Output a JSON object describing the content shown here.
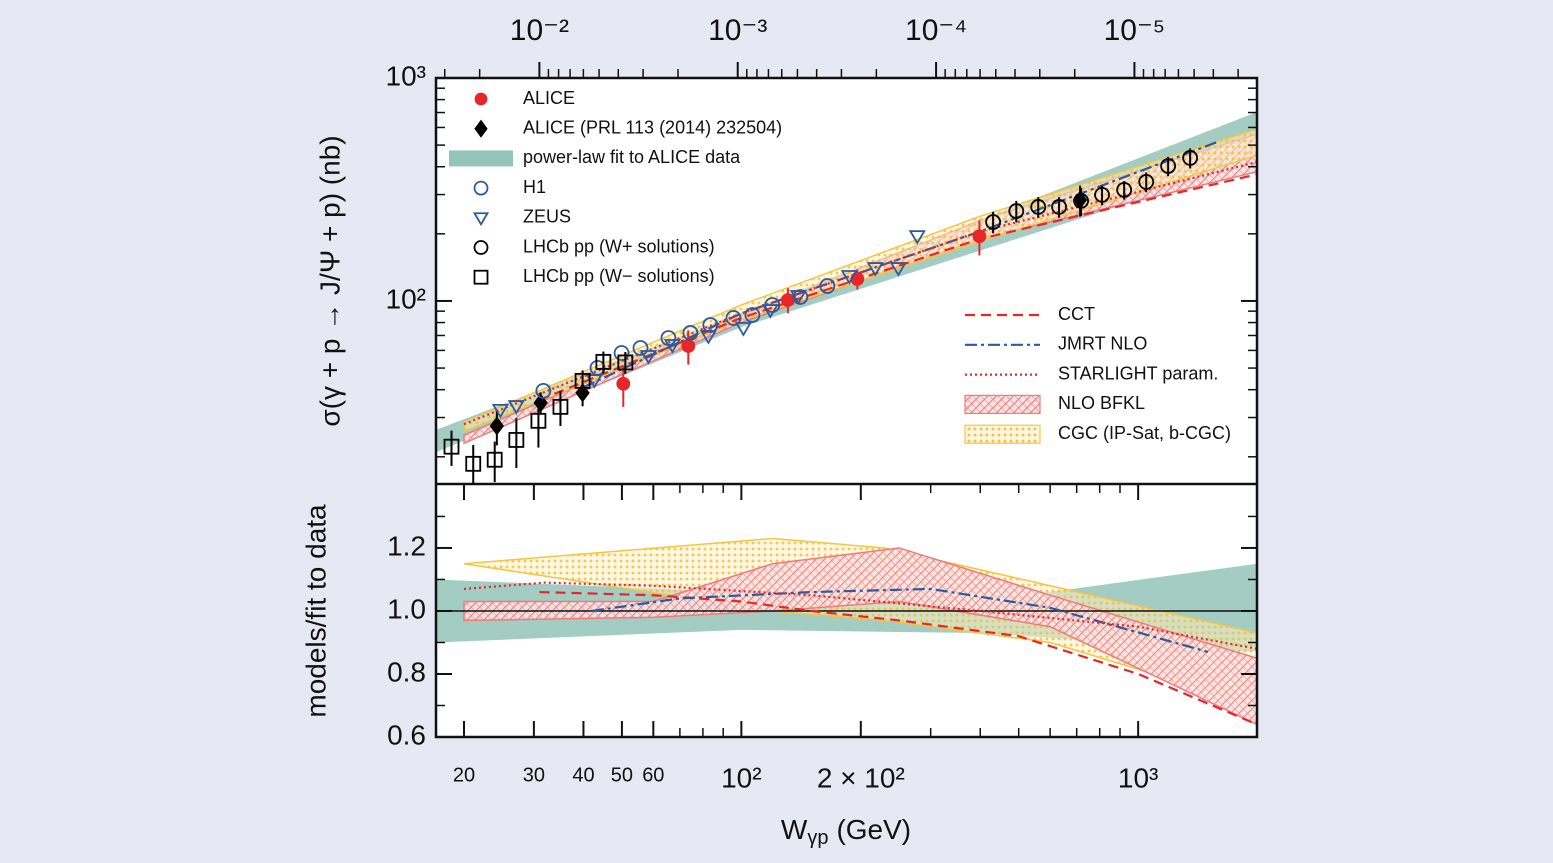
{
  "chart_data": [
    {
      "type": "scatter",
      "ylabel": "σ(γ + p → J/Ψ + p) (nb)",
      "xlim": [
        17,
        1993
      ],
      "xlog": true,
      "ylim": [
        15.1,
        1000
      ],
      "ylog": true,
      "yticks": [
        {
          "value": 100,
          "label": "10²"
        },
        {
          "value": 1000,
          "label": "10³"
        }
      ],
      "yminor": [
        20,
        30,
        40,
        50,
        60,
        70,
        80,
        90,
        200,
        300,
        400,
        500,
        600,
        700,
        800,
        900
      ],
      "x2lim": [
        0.0332,
        2.41e-06
      ],
      "x2log": true,
      "x2ticks": [
        {
          "value": 0.01,
          "label": "10⁻²"
        },
        {
          "value": 0.001,
          "label": "10⁻³"
        },
        {
          "value": 0.0001,
          "label": "10⁻⁴"
        },
        {
          "value": 1e-05,
          "label": "10⁻⁵"
        }
      ],
      "x2minor": [
        0.03,
        0.02,
        0.009,
        0.008,
        0.007,
        0.006,
        0.005,
        0.004,
        0.003,
        0.002,
        0.0009,
        0.0008,
        0.0007,
        0.0006,
        0.0005,
        0.0004,
        0.0003,
        0.0002,
        9e-05,
        8e-05,
        7e-05,
        6e-05,
        5e-05,
        4e-05,
        3e-05,
        2e-05,
        9e-06,
        8e-06,
        7e-06,
        6e-06,
        5e-06,
        4e-06,
        3e-06
      ],
      "legend": "upper left",
      "series": [
        {
          "name": "ALICE",
          "color": "#e8262a",
          "marker": "o",
          "filled": true,
          "x": [
            50.4,
            73.5,
            131,
            196,
            398
          ],
          "values": [
            42.5,
            62.8,
            101,
            125.5,
            195
          ],
          "errors": [
            9,
            11,
            13,
            13,
            35
          ]
        },
        {
          "name": "ALICE (PRL 113 (2014) 232504)",
          "color": "#000000",
          "marker": "d",
          "filled": true,
          "x": [
            24.2,
            31.2,
            39.8,
            714
          ],
          "values": [
            27.5,
            34.9,
            38.7,
            284
          ],
          "errors": [
            5,
            4,
            5,
            45
          ]
        },
        {
          "name": "power-law fit to ALICE data",
          "color": "#93c4b8",
          "kind": "band",
          "x": [
            17,
            100,
            1993
          ],
          "lo": [
            21.0,
            76.4,
            420
          ],
          "hi": [
            26.4,
            88.3,
            704
          ]
        },
        {
          "name": "H1",
          "color": "#2c5aa0",
          "marker": "o",
          "filled": false,
          "x": [
            31.7,
            43.4,
            49.9,
            55.7,
            65.5,
            74.4,
            83.5,
            95.5,
            106.6,
            119.7,
            140.8,
            164.7
          ],
          "values": [
            39.5,
            50.1,
            58.4,
            61.5,
            68.2,
            71.9,
            78.0,
            83.9,
            86.5,
            95.9,
            104.2,
            116.7
          ]
        },
        {
          "name": "ZEUS",
          "color": "#2c5aa0",
          "marker": "v",
          "filled": false,
          "x": [
            24.7,
            27.1,
            42.6,
            58.3,
            67.0,
            82.6,
            101.2,
            118.3,
            139.2,
            187.1,
            217.5,
            248.7,
            277.6
          ],
          "values": [
            32.5,
            33.8,
            44.2,
            56.7,
            63.5,
            69.7,
            75.7,
            91.1,
            105.3,
            129.5,
            140.6,
            140.6,
            195.6
          ]
        },
        {
          "name": "LHCb pp (W+ solutions)",
          "color": "#000000",
          "marker": "o",
          "filled": false,
          "x": [
            431,
            493,
            560,
            632,
            718,
            811,
            922,
            1048,
            1190,
            1352
          ],
          "values": [
            226,
            253,
            264,
            264,
            281,
            299,
            315,
            342,
            403,
            438
          ],
          "errors": [
            25,
            28,
            28,
            28,
            40,
            30,
            30,
            35,
            40,
            45
          ]
        },
        {
          "name": "LHCb pp (W− solutions)",
          "color": "#000000",
          "marker": "s",
          "filled": false,
          "x": [
            18.6,
            21.1,
            23.9,
            27.1,
            30.8,
            35.0,
            39.8,
            44.9,
            51.0
          ],
          "values": [
            22.2,
            18.6,
            19.4,
            23.8,
            29.0,
            33.5,
            43.8,
            53.3,
            53.0
          ],
          "errors": [
            4,
            4,
            4,
            6,
            7,
            6,
            5,
            6,
            6
          ]
        }
      ],
      "models_legend": "center right",
      "models": [
        {
          "name": "CCT",
          "color": "#e8262a",
          "style": "dashed",
          "x": [
            31,
            100,
            400,
            1993
          ],
          "values": [
            36,
            84,
            190,
            370
          ]
        },
        {
          "name": "JMRT NLO",
          "color": "#2c5aa0",
          "style": "dashdot",
          "x": [
            40,
            100,
            400,
            1600
          ],
          "values": [
            41,
            88,
            205,
            520
          ]
        },
        {
          "name": "STARLIGHT param.",
          "color": "#e8262a",
          "style": "dotted",
          "x": [
            20,
            100,
            400,
            1993
          ],
          "values": [
            28,
            88,
            205,
            420
          ]
        },
        {
          "name": "NLO BFKL",
          "color": "#f07a7a",
          "style": "hatch",
          "x": [
            20,
            100,
            400,
            1993
          ],
          "lo": [
            23,
            80,
            190,
            380
          ],
          "hi": [
            25,
            86,
            230,
            560
          ]
        },
        {
          "name": "CGC (IP-Sat, b-CGC)",
          "color": "#f5c542",
          "style": "dots",
          "x": [
            20,
            100,
            400,
            1993
          ],
          "lo": [
            26,
            82,
            185,
            450
          ],
          "hi": [
            28.5,
            96,
            240,
            590
          ]
        }
      ]
    },
    {
      "type": "line",
      "ylabel": "models/fit to data",
      "xlabel": {
        "text": "W",
        "sub": "γp",
        "unit": "(GeV)"
      },
      "xlim": [
        17,
        1993
      ],
      "xlog": true,
      "xticks": [
        20,
        30,
        40,
        50,
        60,
        {
          "value": 100,
          "label": "10²"
        },
        {
          "value": 200,
          "label": "2 × 10²"
        },
        {
          "value": 1000,
          "label": "10³"
        }
      ],
      "xminor": [
        70,
        80,
        90,
        300,
        400,
        500,
        600,
        700,
        800,
        900
      ],
      "ylim": [
        0.6,
        1.403
      ],
      "ylog": false,
      "yticks": [
        0.6,
        0.8,
        {
          "value": 1,
          "label": "1.0"
        },
        1.2
      ],
      "yminor": [
        0.7,
        0.9,
        1.1,
        1.3
      ],
      "hline": 1,
      "series": [
        {
          "color": "#93c4b8",
          "kind": "band",
          "x": [
            17,
            100,
            400,
            1993
          ],
          "lo": [
            0.9,
            0.94,
            0.93,
            0.87
          ],
          "hi": [
            1.1,
            1.06,
            1.03,
            1.15
          ]
        },
        {
          "color": "#f5c542",
          "style": "dots",
          "x": [
            20,
            120,
            230,
            600,
            1993
          ],
          "lo": [
            1.15,
            1.0,
            0.97,
            0.9,
            0.7
          ],
          "hi": [
            1.15,
            1.23,
            1.2,
            1.08,
            0.93
          ]
        },
        {
          "color": "#f07a7a",
          "style": "hatch",
          "x": [
            20,
            60,
            120,
            250,
            600,
            1993
          ],
          "lo": [
            0.97,
            0.98,
            1.0,
            1.03,
            0.95,
            0.64
          ],
          "hi": [
            1.03,
            1.03,
            1.15,
            1.2,
            1.05,
            0.85
          ]
        },
        {
          "color": "#e8262a",
          "style": "dashed",
          "x": [
            31,
            60,
            100,
            150,
            250,
            500,
            1000,
            1993
          ],
          "values": [
            1.06,
            1.05,
            1.03,
            1.0,
            0.97,
            0.92,
            0.8,
            0.64
          ]
        },
        {
          "color": "#2c5aa0",
          "style": "dashdot",
          "x": [
            42,
            70,
            150,
            300,
            600,
            1500
          ],
          "values": [
            1.0,
            1.04,
            1.06,
            1.07,
            1.01,
            0.87
          ]
        },
        {
          "color": "#e8262a",
          "style": "dotted",
          "x": [
            20,
            32,
            60,
            150,
            400,
            1000,
            1993
          ],
          "values": [
            1.07,
            1.09,
            1.08,
            1.05,
            1.0,
            0.95,
            0.88
          ]
        }
      ]
    }
  ]
}
